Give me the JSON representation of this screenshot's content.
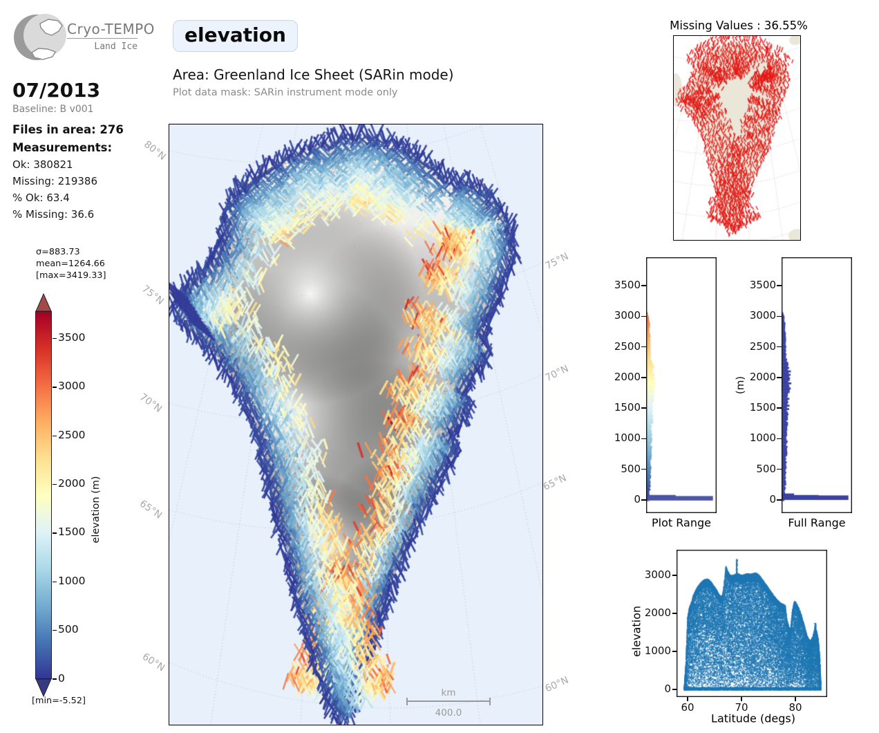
{
  "logo": {
    "title": "Cryo-TEMPO",
    "subtitle": "Land Ice"
  },
  "header": {
    "variable": "elevation",
    "area_label": "Area: Greenland Ice Sheet (SARin mode)",
    "mask_label": "Plot data mask: SARin instrument mode only"
  },
  "sidebar": {
    "date": "07/2013",
    "baseline": "Baseline: B v001",
    "files_label": "Files in area: 276",
    "measurements_label": "Measurements:",
    "stats": [
      "Ok: 380821",
      "Missing: 219386",
      "% Ok: 63.4",
      "% Missing: 36.6"
    ]
  },
  "colorbar": {
    "sigma_label": "σ=883.73",
    "mean_label": "mean=1264.66",
    "max_label": "[max=3419.33]",
    "min_label": "[min=-5.52]",
    "axis_label": "elevation (m)",
    "ticks": [
      0,
      500,
      1000,
      1500,
      2000,
      2500,
      3000,
      3500
    ],
    "vmax": 3800,
    "cmap_stops": [
      "#313695",
      "#4575b4",
      "#74add1",
      "#abd9e9",
      "#e0f3f8",
      "#ffffbf",
      "#fee090",
      "#fdae61",
      "#f46d43",
      "#d73027",
      "#a50026"
    ],
    "arrow_over_color": "#a04a49",
    "arrow_under_color": "#343b82"
  },
  "main_map": {
    "ocean_color": "#e8f1fb",
    "land_color": "#f1f0ee",
    "lat_labels_left": [
      "80°N",
      "75°N",
      "70°N",
      "65°N",
      "60°N"
    ],
    "lat_labels_right": [
      "75°N",
      "70°N",
      "65°N",
      "60°N"
    ],
    "scalebar": {
      "unit": "km",
      "value": "400.0"
    },
    "outline": [
      [
        297,
        17
      ],
      [
        320,
        25
      ],
      [
        350,
        38
      ],
      [
        375,
        55
      ],
      [
        398,
        76
      ],
      [
        412,
        84
      ],
      [
        430,
        82
      ],
      [
        458,
        98
      ],
      [
        478,
        122
      ],
      [
        492,
        150
      ],
      [
        497,
        180
      ],
      [
        490,
        205
      ],
      [
        480,
        228
      ],
      [
        473,
        255
      ],
      [
        458,
        283
      ],
      [
        452,
        310
      ],
      [
        460,
        336
      ],
      [
        442,
        360
      ],
      [
        426,
        386
      ],
      [
        434,
        408
      ],
      [
        420,
        430
      ],
      [
        406,
        452
      ],
      [
        415,
        474
      ],
      [
        399,
        496
      ],
      [
        387,
        518
      ],
      [
        377,
        540
      ],
      [
        365,
        564
      ],
      [
        353,
        588
      ],
      [
        343,
        612
      ],
      [
        333,
        636
      ],
      [
        323,
        658
      ],
      [
        315,
        680
      ],
      [
        307,
        702
      ],
      [
        300,
        724
      ],
      [
        293,
        746
      ],
      [
        287,
        768
      ],
      [
        281,
        790
      ],
      [
        275,
        812
      ],
      [
        269,
        834
      ],
      [
        261,
        852
      ],
      [
        247,
        860
      ],
      [
        237,
        844
      ],
      [
        228,
        824
      ],
      [
        220,
        800
      ],
      [
        213,
        776
      ],
      [
        206,
        752
      ],
      [
        199,
        728
      ],
      [
        192,
        704
      ],
      [
        186,
        680
      ],
      [
        180,
        656
      ],
      [
        174,
        632
      ],
      [
        168,
        608
      ],
      [
        162,
        584
      ],
      [
        156,
        560
      ],
      [
        150,
        536
      ],
      [
        145,
        512
      ],
      [
        139,
        488
      ],
      [
        133,
        464
      ],
      [
        126,
        440
      ],
      [
        117,
        416
      ],
      [
        106,
        392
      ],
      [
        92,
        368
      ],
      [
        76,
        344
      ],
      [
        58,
        322
      ],
      [
        40,
        305
      ],
      [
        22,
        290
      ],
      [
        10,
        268
      ],
      [
        14,
        245
      ],
      [
        30,
        228
      ],
      [
        48,
        212
      ],
      [
        62,
        195
      ],
      [
        74,
        175
      ],
      [
        80,
        155
      ],
      [
        84,
        135
      ],
      [
        86,
        113
      ],
      [
        98,
        96
      ],
      [
        120,
        78
      ],
      [
        146,
        60
      ],
      [
        172,
        45
      ],
      [
        205,
        31
      ],
      [
        243,
        20
      ],
      [
        270,
        16
      ]
    ]
  },
  "missing_map": {
    "title": "Missing Values : 36.55%",
    "land_color": "#eae6d8",
    "point_color": "#e31a16"
  },
  "histograms": {
    "plot_range": {
      "title": "Plot Range"
    },
    "full_range": {
      "title": "Full Range",
      "ylabel": "(m)"
    },
    "bar_color": "#3b429f",
    "plot_spike_color": "#4d55a5"
  },
  "scatter": {
    "xlabel": "Latitude (degs)",
    "ylabel": "elevation",
    "point_color": "#1f77b4"
  },
  "chart_data": {
    "elevation_map": {
      "type": "map",
      "variable": "elevation",
      "units": "m",
      "area": "Greenland Ice Sheet (SARin mode)",
      "colormap": "RdYlBu_r",
      "color_range": [
        0,
        3800
      ],
      "colorbar_ticks": [
        0,
        500,
        1000,
        1500,
        2000,
        2500,
        3000,
        3500
      ],
      "stats": {
        "sigma": 883.73,
        "mean": 1264.66,
        "max": 3419.33,
        "min": -5.52
      },
      "graticule_lats_deg_N": [
        60,
        65,
        70,
        75,
        80
      ],
      "scalebar_km": 400
    },
    "missing_values_map": {
      "type": "map",
      "title": "Missing Values : 36.55%",
      "missing_percent": 36.55
    },
    "elevation_histograms": {
      "type": "bar",
      "orientation": "horizontal",
      "titles": [
        "Plot Range",
        "Full Range"
      ],
      "ylabel": "(m)",
      "yticks": [
        0,
        500,
        1000,
        1500,
        2000,
        2500,
        3000,
        3500
      ],
      "ylim": [
        -180,
        3680
      ],
      "profile_elev_vs_relwidth": [
        [
          0,
          0.03
        ],
        [
          200,
          0.043
        ],
        [
          400,
          0.05
        ],
        [
          600,
          0.055
        ],
        [
          800,
          0.06
        ],
        [
          1000,
          0.063
        ],
        [
          1200,
          0.068
        ],
        [
          1400,
          0.076
        ],
        [
          1600,
          0.084
        ],
        [
          1800,
          0.096
        ],
        [
          1900,
          0.103
        ],
        [
          2000,
          0.108
        ],
        [
          2100,
          0.099
        ],
        [
          2200,
          0.08
        ],
        [
          2300,
          0.058
        ],
        [
          2400,
          0.05
        ],
        [
          2500,
          0.046
        ],
        [
          2600,
          0.044
        ],
        [
          2700,
          0.042
        ],
        [
          2800,
          0.04
        ],
        [
          2900,
          0.036
        ],
        [
          3000,
          0.024
        ],
        [
          3060,
          0.004
        ]
      ],
      "plot_range_low_spikes_elev_relwidth": [
        [
          48,
          0.42
        ],
        [
          30,
          0.965
        ]
      ],
      "full_range_low_spikes_elev_relwidth": [
        [
          72,
          0.17
        ],
        [
          47,
          0.53
        ],
        [
          40,
          0.965
        ]
      ]
    },
    "latitude_scatter": {
      "type": "scatter",
      "xlabel": "Latitude (degs)",
      "ylabel": "elevation",
      "xticks": [
        60,
        70,
        80
      ],
      "yticks": [
        0,
        1000,
        2000,
        3000
      ],
      "xlim": [
        58.5,
        85.8
      ],
      "ylim": [
        -150,
        3650
      ],
      "envelope_lat_maxelev": [
        [
          59.3,
          60
        ],
        [
          59.6,
          700
        ],
        [
          59.9,
          1900
        ],
        [
          60.2,
          2150
        ],
        [
          60.6,
          2300
        ],
        [
          61.0,
          2500
        ],
        [
          61.5,
          2650
        ],
        [
          62.0,
          2760
        ],
        [
          62.5,
          2840
        ],
        [
          63.0,
          2900
        ],
        [
          63.5,
          2920
        ],
        [
          64.0,
          2890
        ],
        [
          64.5,
          2790
        ],
        [
          65.0,
          2690
        ],
        [
          65.5,
          2570
        ],
        [
          66.0,
          2460
        ],
        [
          66.4,
          2500
        ],
        [
          66.8,
          2950
        ],
        [
          67.0,
          3250
        ],
        [
          67.3,
          3130
        ],
        [
          67.7,
          3040
        ],
        [
          68.0,
          3010
        ],
        [
          68.5,
          3030
        ],
        [
          69.0,
          3060
        ],
        [
          69.5,
          3050
        ],
        [
          70.0,
          3010
        ],
        [
          70.5,
          3040
        ],
        [
          71.0,
          3070
        ],
        [
          71.5,
          3050
        ],
        [
          72.0,
          3060
        ],
        [
          72.5,
          3080
        ],
        [
          73.0,
          3050
        ],
        [
          73.5,
          2960
        ],
        [
          74.0,
          2860
        ],
        [
          74.5,
          2760
        ],
        [
          75.0,
          2660
        ],
        [
          75.5,
          2560
        ],
        [
          76.0,
          2460
        ],
        [
          76.5,
          2370
        ],
        [
          77.0,
          2300
        ],
        [
          77.5,
          2260
        ],
        [
          78.0,
          2230
        ],
        [
          78.3,
          1850
        ],
        [
          78.7,
          1650
        ],
        [
          79.0,
          1580
        ],
        [
          79.3,
          2050
        ],
        [
          79.7,
          2330
        ],
        [
          80.0,
          2310
        ],
        [
          80.5,
          2160
        ],
        [
          81.0,
          1960
        ],
        [
          81.5,
          1720
        ],
        [
          82.0,
          1450
        ],
        [
          82.4,
          1320
        ],
        [
          82.8,
          1300
        ],
        [
          83.2,
          1420
        ],
        [
          83.5,
          1620
        ],
        [
          83.8,
          1560
        ],
        [
          84.1,
          1350
        ],
        [
          84.4,
          900
        ],
        [
          84.6,
          150
        ]
      ]
    }
  }
}
